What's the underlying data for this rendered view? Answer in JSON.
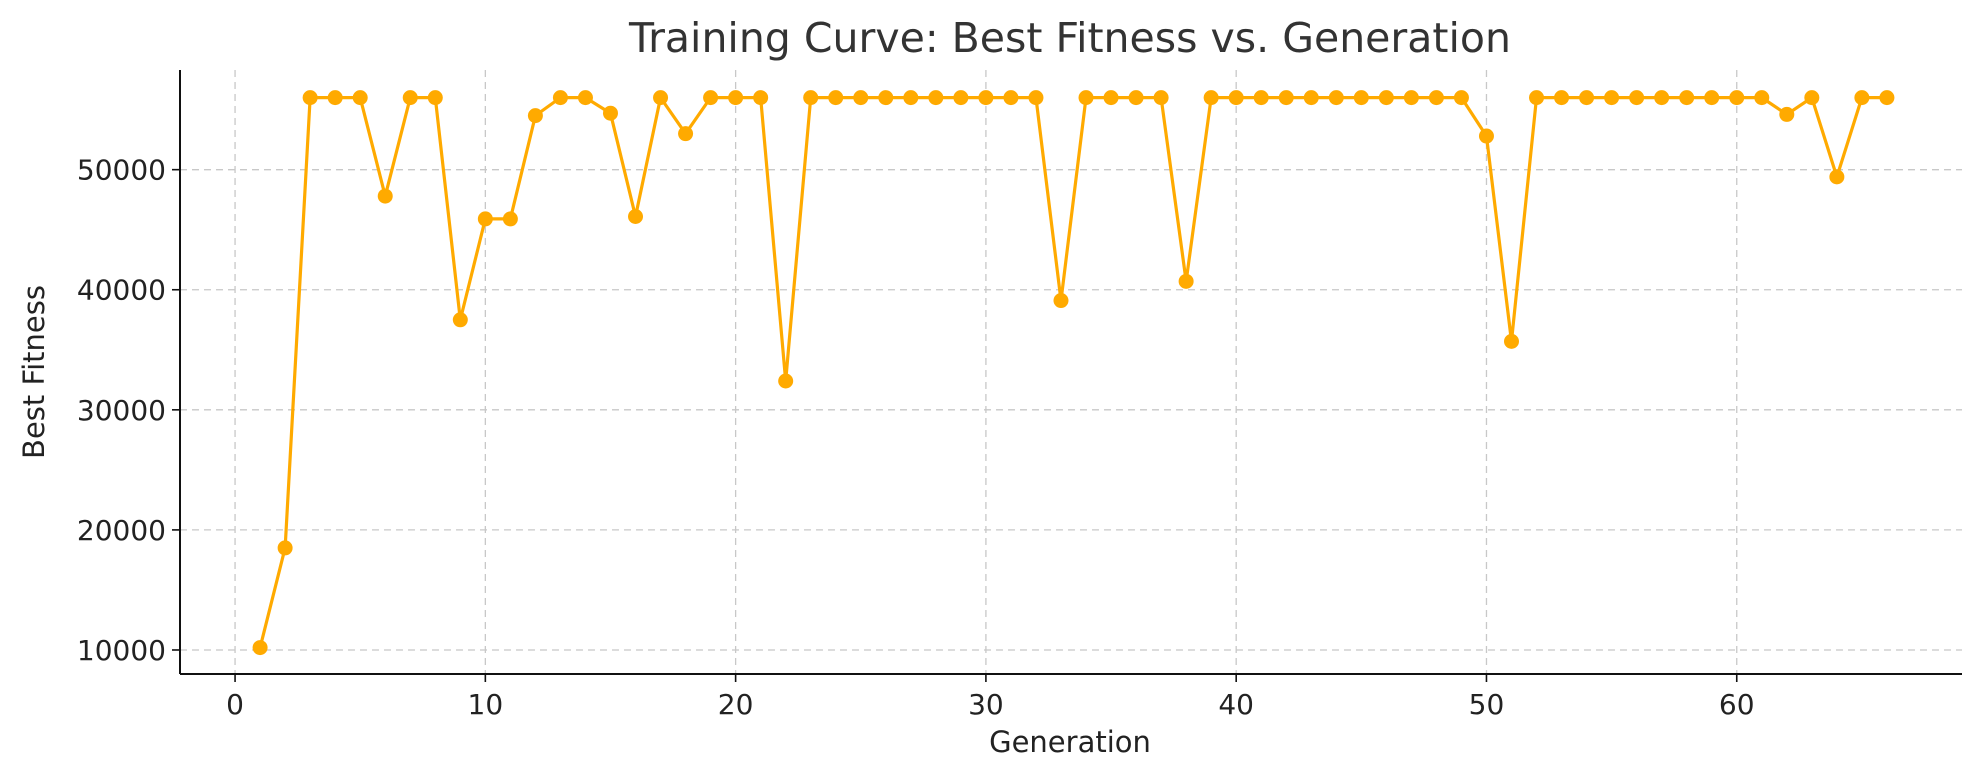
{
  "chart_data": {
    "type": "line",
    "title": "Training Curve: Best Fitness vs. Generation",
    "xlabel": "Generation",
    "ylabel": "Best Fitness",
    "xlim": [
      -2.2,
      69
    ],
    "ylim": [
      8000,
      58300
    ],
    "xticks": [
      0,
      10,
      20,
      30,
      40,
      50,
      60
    ],
    "yticks": [
      10000,
      20000,
      30000,
      40000,
      50000
    ],
    "grid": true,
    "legend": "none",
    "series": [
      {
        "color": "#FFAA00",
        "marker": "circle",
        "x": [
          1,
          2,
          3,
          4,
          5,
          6,
          7,
          8,
          9,
          10,
          11,
          12,
          13,
          14,
          15,
          16,
          17,
          18,
          19,
          20,
          21,
          22,
          23,
          24,
          25,
          26,
          27,
          28,
          29,
          30,
          31,
          32,
          33,
          34,
          35,
          36,
          37,
          38,
          39,
          40,
          41,
          42,
          43,
          44,
          45,
          46,
          47,
          48,
          49,
          50,
          51,
          52,
          53,
          54,
          55,
          56,
          57,
          58,
          59,
          60,
          61,
          62,
          63,
          64,
          65,
          66
        ],
        "y": [
          10200,
          18500,
          56000,
          56000,
          56000,
          47800,
          56000,
          56000,
          37500,
          45900,
          45900,
          54500,
          56000,
          56000,
          54700,
          46100,
          56000,
          53000,
          56000,
          56000,
          56000,
          32400,
          56000,
          56000,
          56000,
          56000,
          56000,
          56000,
          56000,
          56000,
          56000,
          56000,
          39100,
          56000,
          56000,
          56000,
          56000,
          40700,
          56000,
          56000,
          56000,
          56000,
          56000,
          56000,
          56000,
          56000,
          56000,
          56000,
          56000,
          52800,
          35700,
          56000,
          56000,
          56000,
          56000,
          56000,
          56000,
          56000,
          56000,
          56000,
          56000,
          54600,
          56000,
          49400,
          56000,
          56000
        ]
      }
    ]
  }
}
